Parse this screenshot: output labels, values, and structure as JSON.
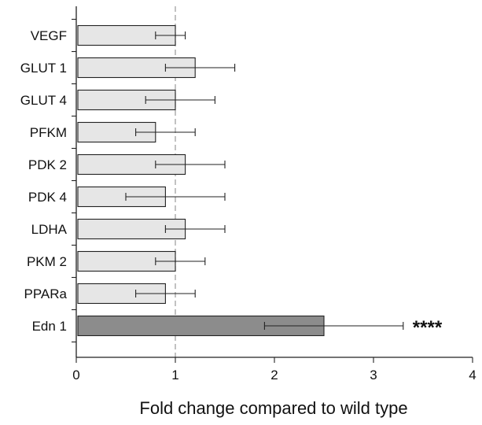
{
  "chart_data": {
    "type": "bar",
    "orientation": "horizontal",
    "categories": [
      "VEGF",
      "GLUT 1",
      "GLUT 4",
      "PFKM",
      "PDK 2",
      "PDK 4",
      "LDHA",
      "PKM 2",
      "PPARa",
      "Edn 1"
    ],
    "values": [
      1.0,
      1.2,
      1.0,
      0.8,
      1.1,
      0.9,
      1.1,
      1.0,
      0.9,
      2.5
    ],
    "error_low": [
      0.8,
      0.9,
      0.7,
      0.6,
      0.8,
      0.5,
      0.9,
      0.8,
      0.6,
      1.9
    ],
    "error_high": [
      1.1,
      1.6,
      1.4,
      1.2,
      1.5,
      1.5,
      1.5,
      1.3,
      1.2,
      3.3
    ],
    "bar_colors": [
      "#e6e6e6",
      "#e6e6e6",
      "#e6e6e6",
      "#e6e6e6",
      "#e6e6e6",
      "#e6e6e6",
      "#e6e6e6",
      "#e6e6e6",
      "#e6e6e6",
      "#8c8c8c"
    ],
    "xlim": [
      0,
      4
    ],
    "xticks": [
      "0",
      "1",
      "2",
      "3",
      "4"
    ],
    "xlabel": "Fold change compared to wild type",
    "reference_line": 1,
    "annotations": [
      {
        "category": "Edn 1",
        "text": "****"
      }
    ],
    "grid": false
  }
}
